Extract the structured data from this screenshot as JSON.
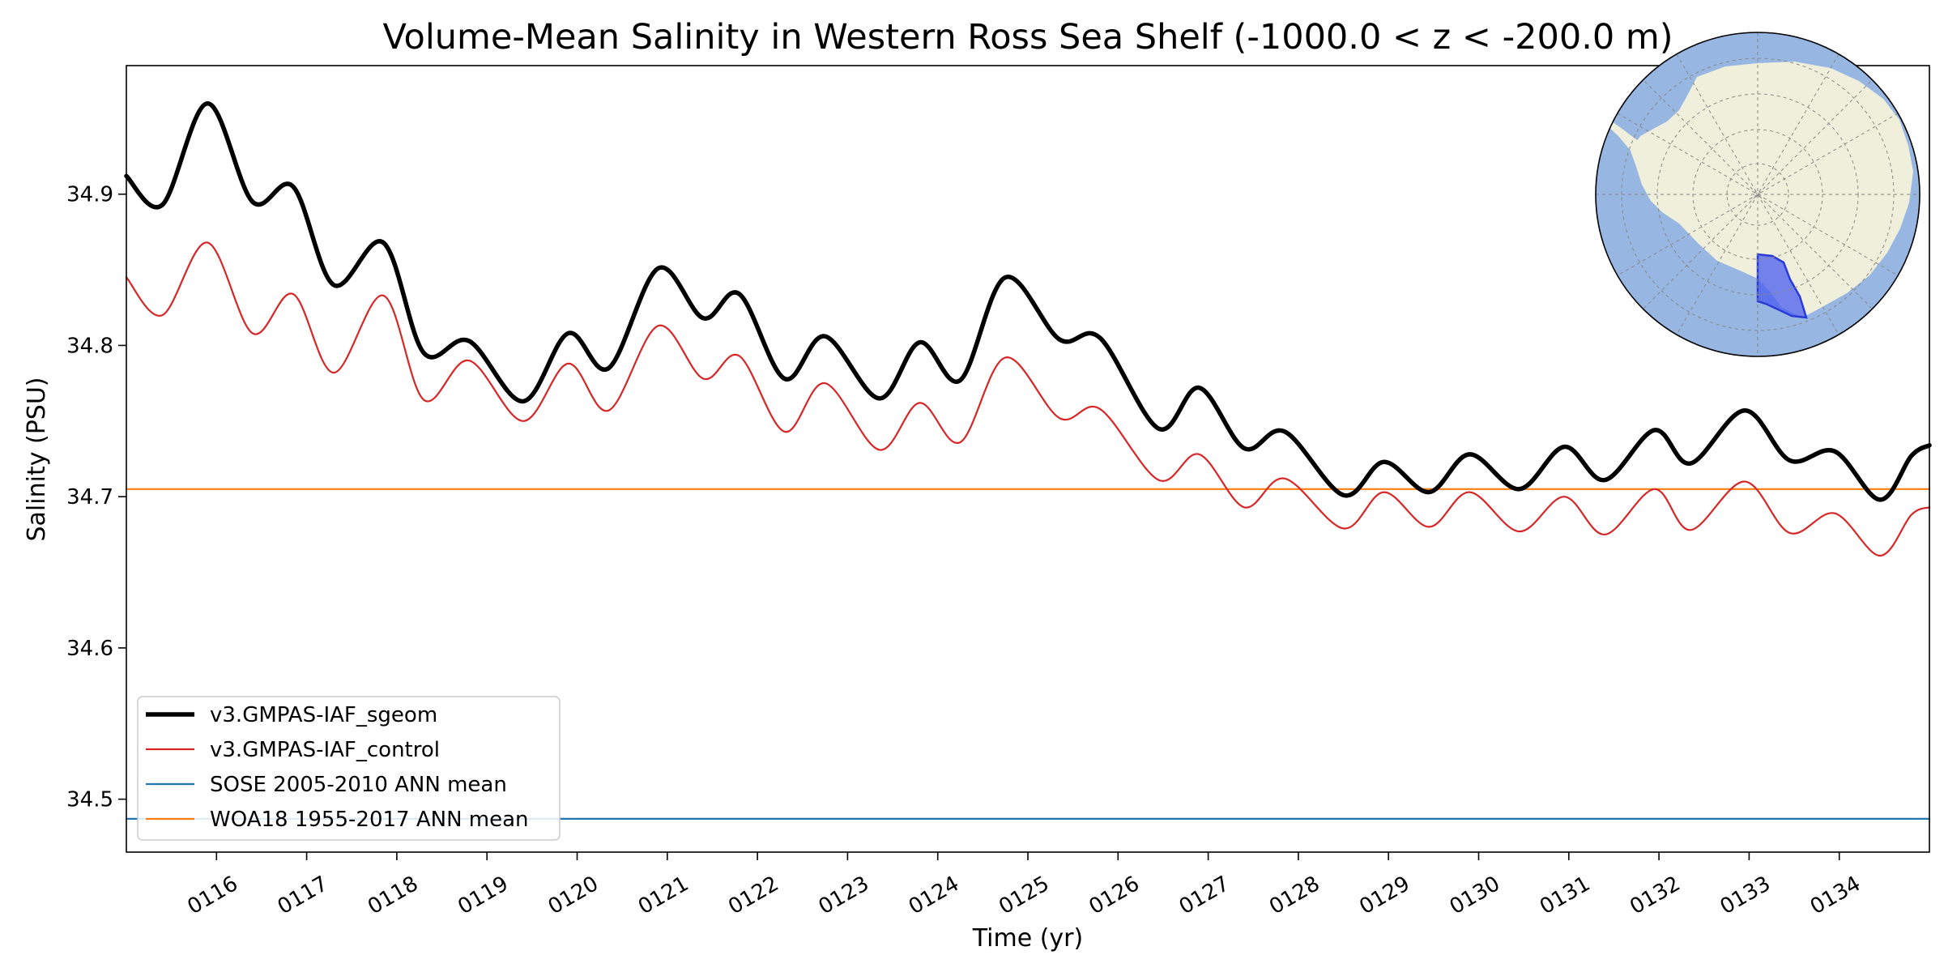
{
  "chart_data": {
    "type": "line",
    "title": "Volume-Mean Salinity in Western Ross Sea Shelf (-1000.0 < z < -200.0 m)",
    "xlabel": "Time (yr)",
    "ylabel": "Salinity (PSU)",
    "xlim": [
      115.0,
      135.0
    ],
    "ylim": [
      34.465,
      34.985
    ],
    "x_ticks": [
      116,
      117,
      118,
      119,
      120,
      121,
      122,
      123,
      124,
      125,
      126,
      127,
      128,
      129,
      130,
      131,
      132,
      133,
      134
    ],
    "x_tick_labels": [
      "0116",
      "0117",
      "0118",
      "0119",
      "0120",
      "0121",
      "0122",
      "0123",
      "0124",
      "0125",
      "0126",
      "0127",
      "0128",
      "0129",
      "0130",
      "0131",
      "0132",
      "0133",
      "0134"
    ],
    "y_ticks": [
      34.5,
      34.6,
      34.7,
      34.8,
      34.9
    ],
    "y_tick_labels": [
      "34.5",
      "34.6",
      "34.7",
      "34.8",
      "34.9"
    ],
    "grid": false,
    "legend_position": "lower-left",
    "series": [
      {
        "name": "v3.GMPAS-IAF_sgeom",
        "color": "#000000",
        "x": [
          115.0,
          115.4,
          115.9,
          116.4,
          116.85,
          117.3,
          117.85,
          118.3,
          118.8,
          119.4,
          119.9,
          120.35,
          120.9,
          121.4,
          121.8,
          122.3,
          122.75,
          123.35,
          123.8,
          124.25,
          124.75,
          125.35,
          125.8,
          126.45,
          126.9,
          127.4,
          127.85,
          128.5,
          128.95,
          129.45,
          129.9,
          130.45,
          130.95,
          131.4,
          131.95,
          132.35,
          132.95,
          133.45,
          133.95,
          134.45,
          134.8,
          135.0
        ],
        "y": [
          34.912,
          34.893,
          34.96,
          34.895,
          34.905,
          34.84,
          34.868,
          34.795,
          34.803,
          34.763,
          34.808,
          34.785,
          34.851,
          34.818,
          34.834,
          34.778,
          34.806,
          34.765,
          34.802,
          34.777,
          34.845,
          34.804,
          34.805,
          34.745,
          34.772,
          34.732,
          34.743,
          34.701,
          34.723,
          34.703,
          34.728,
          34.705,
          34.733,
          34.711,
          34.744,
          34.722,
          34.757,
          34.724,
          34.73,
          34.698,
          34.727,
          34.734
        ]
      },
      {
        "name": "v3.GMPAS-IAF_control",
        "color": "#d62728",
        "x": [
          115.0,
          115.4,
          115.9,
          116.4,
          116.85,
          117.3,
          117.85,
          118.3,
          118.8,
          119.4,
          119.9,
          120.35,
          120.9,
          121.4,
          121.8,
          122.3,
          122.75,
          123.35,
          123.8,
          124.25,
          124.75,
          125.35,
          125.8,
          126.45,
          126.9,
          127.4,
          127.85,
          128.5,
          128.95,
          129.45,
          129.9,
          130.45,
          130.95,
          131.4,
          131.95,
          132.35,
          132.95,
          133.45,
          133.95,
          134.45,
          134.8,
          135.0
        ],
        "y": [
          34.845,
          34.82,
          34.868,
          34.808,
          34.834,
          34.782,
          34.833,
          34.764,
          34.79,
          34.75,
          34.788,
          34.757,
          34.813,
          34.778,
          34.793,
          34.743,
          34.775,
          34.731,
          34.762,
          34.736,
          34.792,
          34.752,
          34.758,
          34.711,
          34.728,
          34.693,
          34.712,
          34.679,
          34.703,
          34.68,
          34.703,
          34.677,
          34.7,
          34.675,
          34.705,
          34.678,
          34.71,
          34.676,
          34.689,
          34.661,
          34.688,
          34.693
        ]
      },
      {
        "name": "SOSE 2005-2010 ANN mean",
        "color": "#1f77b4",
        "x": [
          115.0,
          135.0
        ],
        "y": [
          34.487,
          34.487
        ]
      },
      {
        "name": "WOA18 1955-2017 ANN mean",
        "color": "#ff7f0e",
        "x": [
          115.0,
          135.0
        ],
        "y": [
          34.705,
          34.705
        ]
      }
    ],
    "inset_map": {
      "projection": "south-polar-stereographic",
      "position": "top-right",
      "ocean_color": "#97b6e1",
      "land_color": "#efefdb",
      "region_color": "#4a5cf0"
    }
  }
}
